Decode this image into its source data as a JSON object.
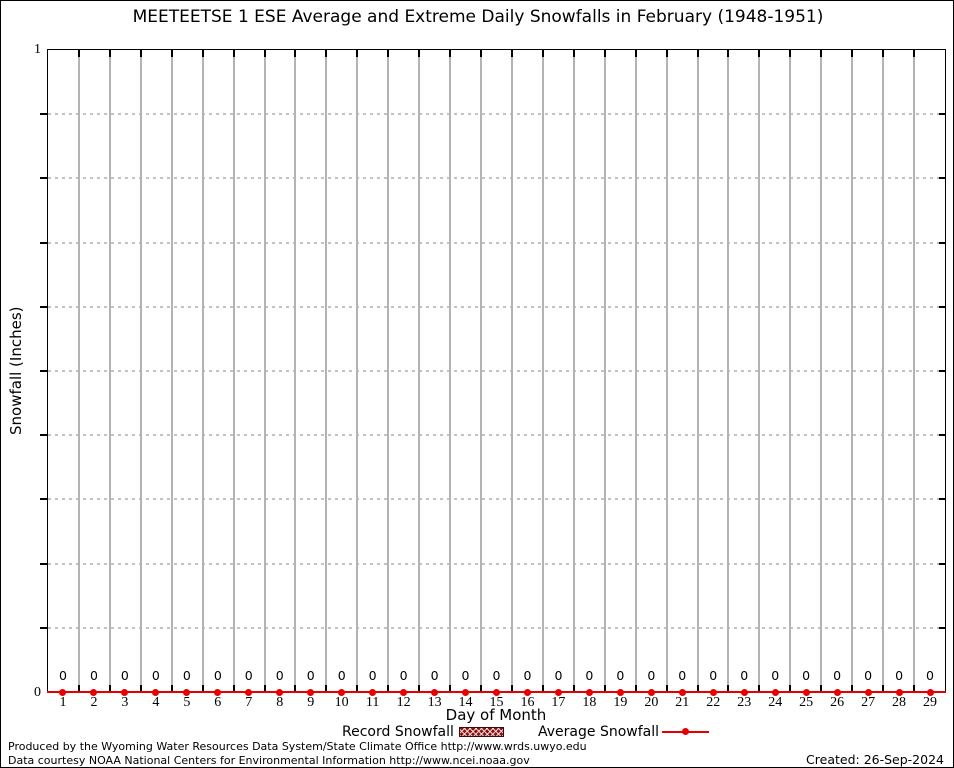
{
  "title": "MEETEETSE 1 ESE Average and Extreme Daily Snowfalls in February (1948-1951)",
  "y_axis": {
    "label": "Snowfall (Inches)",
    "top_tick_label": "1",
    "bottom_tick_label": "0"
  },
  "x_axis": {
    "label": "Day of Month"
  },
  "legend": {
    "record_label": "Record Snowfall",
    "average_label": "Average Snowfall"
  },
  "footer": {
    "produced": "Produced by the Wyoming Water Resources Data System/State Climate Office http://www.wrds.uwyo.edu",
    "courtesy": "Data courtesy NOAA National Centers for Environmental Information http://www.ncei.noaa.gov",
    "created": "Created: 26-Sep-2024"
  },
  "colors": {
    "series_red": "#e60000",
    "record_swatch_fill": "#8b1414",
    "grid_vertical": "#b3b3b3",
    "grid_dashed": "#c2c2c2",
    "axis_black": "#000000"
  },
  "chart_data": {
    "type": "line",
    "title": "MEETEETSE 1 ESE Average and Extreme Daily Snowfalls in February (1948-1951)",
    "xlabel": "Day of Month",
    "ylabel": "Snowfall (Inches)",
    "x": [
      1,
      2,
      3,
      4,
      5,
      6,
      7,
      8,
      9,
      10,
      11,
      12,
      13,
      14,
      15,
      16,
      17,
      18,
      19,
      20,
      21,
      22,
      23,
      24,
      25,
      26,
      27,
      28,
      29
    ],
    "series": [
      {
        "name": "Record Snowfall",
        "type": "bar",
        "color": "#8b1414",
        "values": [
          0,
          0,
          0,
          0,
          0,
          0,
          0,
          0,
          0,
          0,
          0,
          0,
          0,
          0,
          0,
          0,
          0,
          0,
          0,
          0,
          0,
          0,
          0,
          0,
          0,
          0,
          0,
          0,
          0
        ]
      },
      {
        "name": "Average Snowfall",
        "type": "line",
        "color": "#e60000",
        "values": [
          0,
          0,
          0,
          0,
          0,
          0,
          0,
          0,
          0,
          0,
          0,
          0,
          0,
          0,
          0,
          0,
          0,
          0,
          0,
          0,
          0,
          0,
          0,
          0,
          0,
          0,
          0,
          0,
          0
        ]
      }
    ],
    "point_labels": [
      "0",
      "0",
      "0",
      "0",
      "0",
      "0",
      "0",
      "0",
      "0",
      "0",
      "0",
      "0",
      "0",
      "0",
      "0",
      "0",
      "0",
      "0",
      "0",
      "0",
      "0",
      "0",
      "0",
      "0",
      "0",
      "0",
      "0",
      "0",
      "0"
    ],
    "ylim": [
      0,
      1
    ],
    "ytick_labels": {
      "top": "1",
      "bottom": "0"
    },
    "ygrid_interval": 0.1,
    "grid": true,
    "legend_position": "bottom"
  }
}
